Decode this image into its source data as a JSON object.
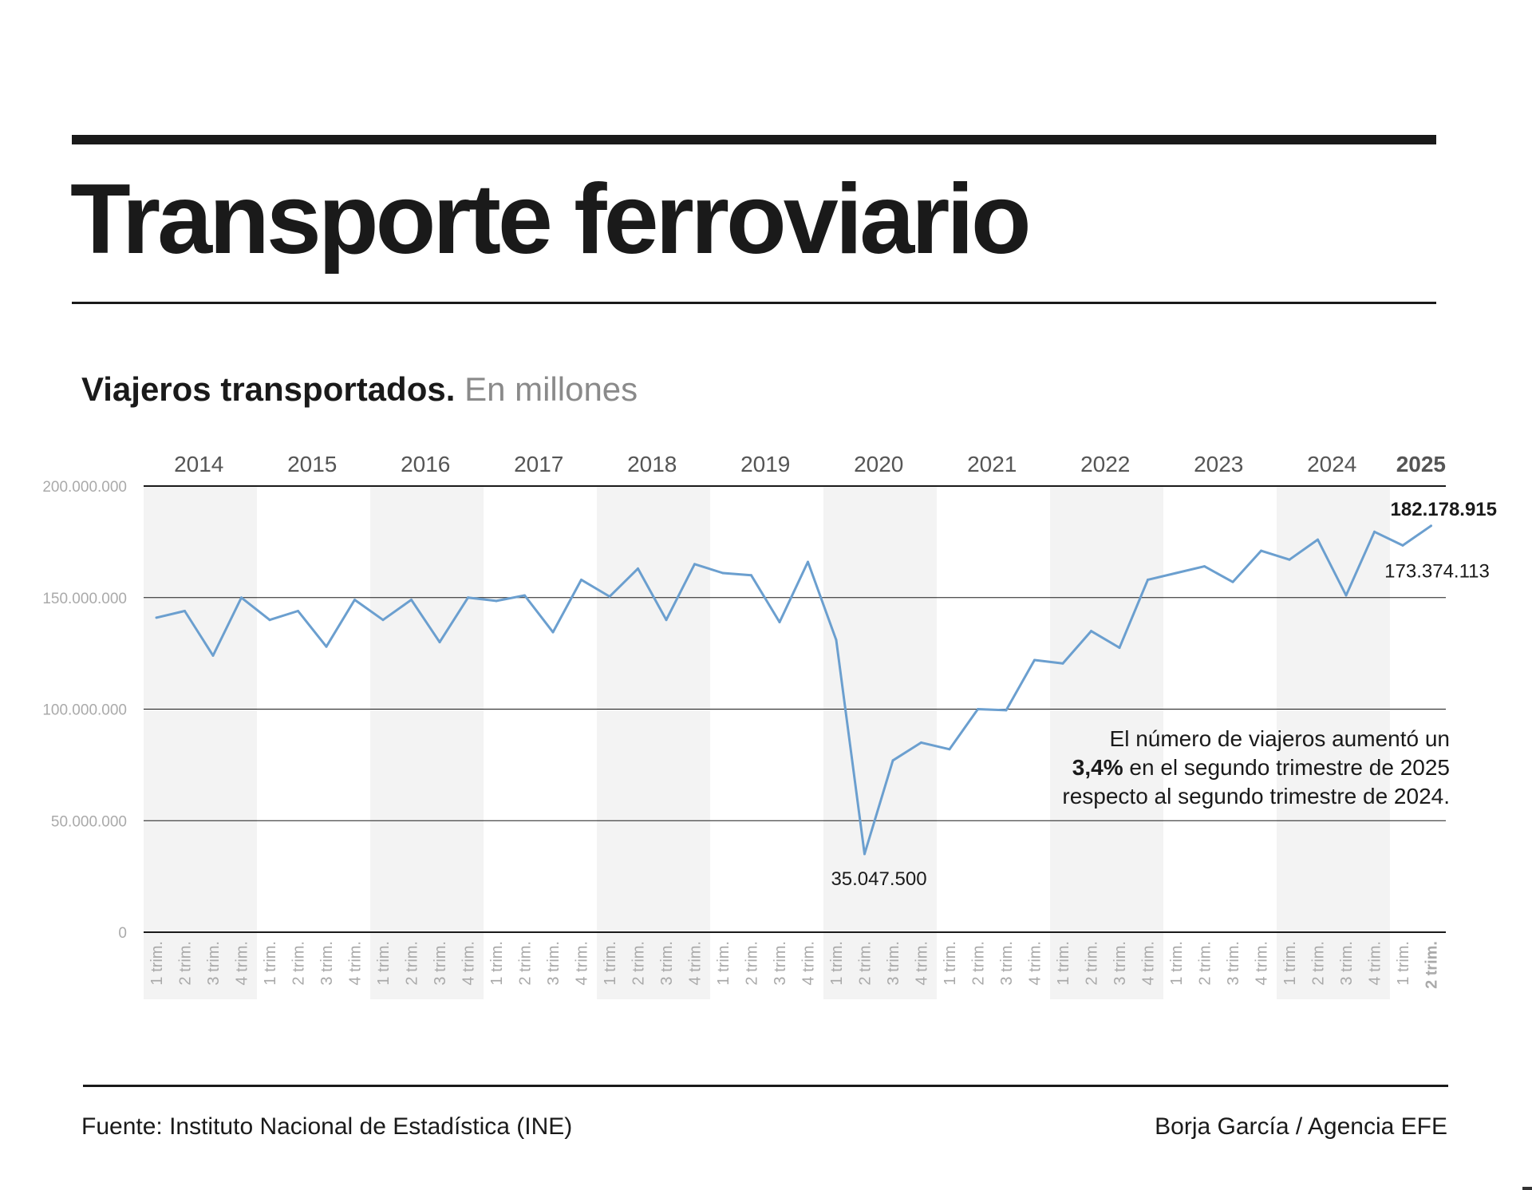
{
  "title": "Transporte ferroviario",
  "subtitle": {
    "main": "Viajeros transportados.",
    "unit": "En millones"
  },
  "note": {
    "line1": "El número de viajeros aumentó un",
    "highlight": "3,4%",
    "line2_rest": " en el segundo trimestre de 2025",
    "line3": "respecto al segundo trimestre de 2024."
  },
  "footer": {
    "source": "Fuente: Instituto Nacional de Estadística (INE)",
    "credit": "Borja García / Agencia EFE"
  },
  "colors": {
    "line": "#6b9fcf",
    "band": "#f3f3f3",
    "grid": "#1a1a1a",
    "axis_text": "#aaaaaa",
    "year_text": "#555555",
    "text": "#1a1a1a"
  },
  "chart_data": {
    "type": "line",
    "ylim": [
      0,
      200000000
    ],
    "yticks": [
      0,
      50000000,
      100000000,
      150000000,
      200000000
    ],
    "ytick_labels": [
      "0",
      "50.000.000",
      "100.000.000",
      "150.000.000",
      "200.000.000"
    ],
    "grid": true,
    "alternating_year_bands": true,
    "years": [
      "2014",
      "2015",
      "2016",
      "2017",
      "2018",
      "2019",
      "2020",
      "2021",
      "2022",
      "2023",
      "2024",
      "2025"
    ],
    "highlight_year": "2025",
    "x_labels": [
      "1 trim.",
      "2 trim.",
      "3 trim.",
      "4 trim.",
      "1 trim.",
      "2 trim.",
      "3 trim.",
      "4 trim.",
      "1 trim.",
      "2 trim.",
      "3 trim.",
      "4 trim.",
      "1 trim.",
      "2 trim.",
      "3 trim.",
      "4 trim.",
      "1 trim.",
      "2 trim.",
      "3 trim.",
      "4 trim.",
      "1 trim.",
      "2 trim.",
      "3 trim.",
      "4 trim.",
      "1 trim.",
      "2 trim.",
      "3 trim.",
      "4 trim.",
      "1 trim.",
      "2 trim.",
      "3 trim.",
      "4 trim.",
      "1 trim.",
      "2 trim.",
      "3 trim.",
      "4 trim.",
      "1 trim.",
      "2 trim.",
      "3 trim.",
      "4 trim.",
      "1 trim.",
      "2 trim.",
      "3 trim.",
      "4 trim.",
      "1 trim.",
      "2 trim."
    ],
    "values": [
      141000000,
      144000000,
      124000000,
      150000000,
      140000000,
      144000000,
      128000000,
      149000000,
      140000000,
      149000000,
      130000000,
      150000000,
      148500000,
      151000000,
      134500000,
      158000000,
      150500000,
      163000000,
      140000000,
      165000000,
      161000000,
      160000000,
      139000000,
      166000000,
      131000000,
      35047500,
      77000000,
      85000000,
      82000000,
      100000000,
      99500000,
      122000000,
      120500000,
      135000000,
      127500000,
      158000000,
      161000000,
      164000000,
      157000000,
      171000000,
      167000000,
      176000000,
      151000000,
      179500000,
      173374113,
      182178915
    ],
    "annotations": [
      {
        "index": 25,
        "label": "35.047.500",
        "bold": false
      },
      {
        "index": 44,
        "label": "173.374.113",
        "bold": false
      },
      {
        "index": 45,
        "label": "182.178.915",
        "bold": true
      }
    ]
  }
}
